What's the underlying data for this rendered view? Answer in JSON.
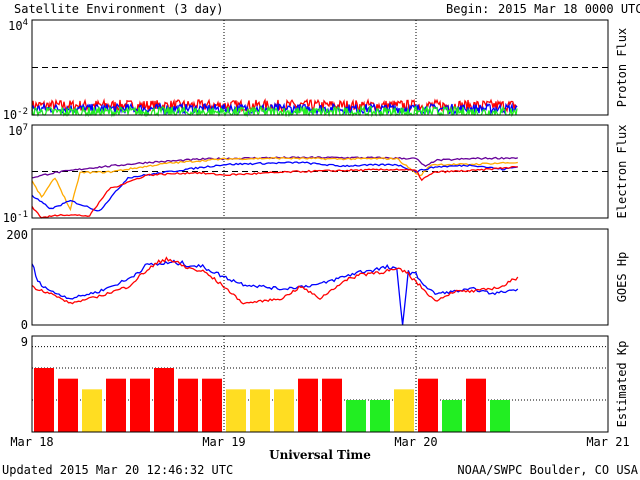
{
  "header": {
    "title": "Satellite Environment (3 day)",
    "begin_label": "Begin:",
    "begin_value": "2015 Mar 18 0000 UTC"
  },
  "footer": {
    "updated": "Updated 2015 Mar 20 12:46:32 UTC",
    "credit": "NOAA/SWPC Boulder, CO USA"
  },
  "xaxis": {
    "title": "Universal Time",
    "ticks": [
      "Mar 18",
      "Mar 19",
      "Mar 20",
      "Mar 21"
    ],
    "range_days": [
      0,
      3
    ],
    "data_end_day": 2.53
  },
  "colors": {
    "red": "#ff0000",
    "blue": "#0000ff",
    "green": "#22ee22",
    "purple": "#660099",
    "orange": "#ffaa00",
    "yellow": "#ffdd22"
  },
  "chart_data": [
    {
      "type": "line",
      "ylabel": "Proton Flux",
      "yscale": "log",
      "ytick_labels": {
        "top": "10",
        "top_exp": "4",
        "bottom": "10",
        "bottom_exp": "-2"
      },
      "ylim": [
        0.01,
        10000
      ],
      "threshold": 10,
      "series": [
        {
          "color": "red",
          "base": 0.04,
          "noise": 0.35
        },
        {
          "color": "blue",
          "base": 0.025,
          "noise": 0.3
        },
        {
          "color": "green",
          "base": 0.015,
          "noise": 0.35
        }
      ]
    },
    {
      "type": "line",
      "ylabel": "Electron Flux",
      "yscale": "log",
      "ytick_labels": {
        "top": "10",
        "top_exp": "7",
        "bottom": "10",
        "bottom_exp": "-1"
      },
      "ylim": [
        0.1,
        10000000
      ],
      "threshold": 1000,
      "series": [
        {
          "color": "purple",
          "points": [
            [
              0,
              300
            ],
            [
              0.1,
              700
            ],
            [
              0.3,
              2000
            ],
            [
              0.6,
              6000
            ],
            [
              0.9,
              12000
            ],
            [
              1.2,
              15000
            ],
            [
              1.5,
              16000
            ],
            [
              1.8,
              15000
            ],
            [
              2.0,
              13000
            ],
            [
              2.05,
              2500
            ],
            [
              2.1,
              9000
            ],
            [
              2.3,
              13000
            ],
            [
              2.53,
              15000
            ]
          ]
        },
        {
          "color": "orange",
          "points": [
            [
              0,
              150
            ],
            [
              0.05,
              6
            ],
            [
              0.12,
              300
            ],
            [
              0.2,
              0.5
            ],
            [
              0.25,
              800
            ],
            [
              0.4,
              900
            ],
            [
              0.7,
              5000
            ],
            [
              1.0,
              12000
            ],
            [
              1.3,
              14000
            ],
            [
              1.6,
              12000
            ],
            [
              1.9,
              13000
            ],
            [
              2.02,
              400
            ],
            [
              2.08,
              4000
            ],
            [
              2.25,
              4000
            ],
            [
              2.4,
              5000
            ],
            [
              2.53,
              6000
            ]
          ]
        },
        {
          "color": "blue",
          "points": [
            [
              0,
              8
            ],
            [
              0.1,
              0.6
            ],
            [
              0.2,
              3
            ],
            [
              0.35,
              0.4
            ],
            [
              0.5,
              300
            ],
            [
              0.8,
              1500
            ],
            [
              1.0,
              4000
            ],
            [
              1.2,
              5000
            ],
            [
              1.4,
              6000
            ],
            [
              1.6,
              3000
            ],
            [
              1.9,
              4000
            ],
            [
              2.0,
              1000
            ],
            [
              2.1,
              2500
            ],
            [
              2.3,
              3500
            ],
            [
              2.45,
              1500
            ],
            [
              2.53,
              2500
            ]
          ]
        },
        {
          "color": "red",
          "points": [
            [
              0,
              1
            ],
            [
              0.05,
              0.1
            ],
            [
              0.15,
              0.2
            ],
            [
              0.3,
              0.15
            ],
            [
              0.4,
              30
            ],
            [
              0.6,
              500
            ],
            [
              0.85,
              800
            ],
            [
              1.0,
              500
            ],
            [
              1.2,
              700
            ],
            [
              1.4,
              1000
            ],
            [
              1.6,
              1200
            ],
            [
              1.9,
              1500
            ],
            [
              2.0,
              1200
            ],
            [
              2.03,
              200
            ],
            [
              2.1,
              900
            ],
            [
              2.3,
              1200
            ],
            [
              2.45,
              2000
            ],
            [
              2.53,
              2500
            ]
          ]
        }
      ]
    },
    {
      "type": "line",
      "ylabel": "GOES Hp",
      "yscale": "linear",
      "ytick_labels": {
        "top": "200",
        "bottom": "0"
      },
      "ylim": [
        0,
        200
      ],
      "series": [
        {
          "color": "blue",
          "points": [
            [
              0,
              130
            ],
            [
              0.03,
              90
            ],
            [
              0.1,
              70
            ],
            [
              0.2,
              55
            ],
            [
              0.35,
              70
            ],
            [
              0.5,
              95
            ],
            [
              0.6,
              125
            ],
            [
              0.75,
              130
            ],
            [
              0.9,
              120
            ],
            [
              1.0,
              100
            ],
            [
              1.1,
              85
            ],
            [
              1.3,
              75
            ],
            [
              1.5,
              85
            ],
            [
              1.7,
              110
            ],
            [
              1.85,
              120
            ],
            [
              1.9,
              115
            ],
            [
              1.93,
              0
            ],
            [
              1.96,
              110
            ],
            [
              2.0,
              105
            ],
            [
              2.05,
              80
            ],
            [
              2.1,
              65
            ],
            [
              2.2,
              70
            ],
            [
              2.3,
              75
            ],
            [
              2.4,
              65
            ],
            [
              2.53,
              75
            ]
          ]
        },
        {
          "color": "red",
          "points": [
            [
              0,
              80
            ],
            [
              0.1,
              65
            ],
            [
              0.2,
              45
            ],
            [
              0.35,
              60
            ],
            [
              0.5,
              80
            ],
            [
              0.6,
              115
            ],
            [
              0.7,
              140
            ],
            [
              0.8,
              120
            ],
            [
              0.9,
              110
            ],
            [
              1.0,
              80
            ],
            [
              1.1,
              45
            ],
            [
              1.2,
              50
            ],
            [
              1.3,
              55
            ],
            [
              1.4,
              80
            ],
            [
              1.5,
              55
            ],
            [
              1.6,
              85
            ],
            [
              1.7,
              105
            ],
            [
              1.8,
              110
            ],
            [
              1.9,
              115
            ],
            [
              1.95,
              110
            ],
            [
              2.0,
              90
            ],
            [
              2.1,
              50
            ],
            [
              2.2,
              70
            ],
            [
              2.3,
              70
            ],
            [
              2.45,
              80
            ],
            [
              2.53,
              100
            ]
          ]
        }
      ]
    },
    {
      "type": "bar",
      "ylabel": "Estimated Kp",
      "ytick_labels": {
        "top": "9",
        "bottom": ""
      },
      "ylim": [
        0,
        9
      ],
      "bar_width_days": 0.125,
      "values": [
        6,
        5,
        4,
        5,
        5,
        6,
        5,
        5,
        4,
        4,
        4,
        5,
        5,
        3,
        3,
        4,
        5,
        3,
        5,
        3
      ],
      "bar_colors": [
        "red",
        "red",
        "yellow",
        "red",
        "red",
        "red",
        "red",
        "red",
        "yellow",
        "yellow",
        "yellow",
        "red",
        "red",
        "green",
        "green",
        "yellow",
        "red",
        "green",
        "red",
        "green"
      ]
    }
  ]
}
